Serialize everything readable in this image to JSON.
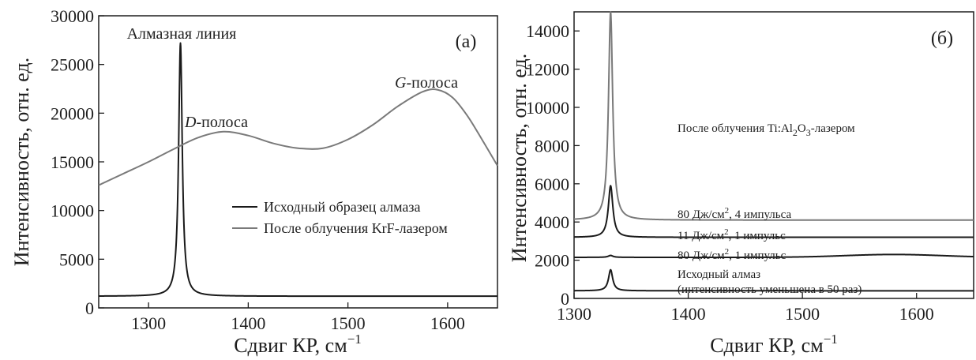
{
  "chart_data": [
    {
      "type": "line",
      "panel_label": "(а)",
      "xlabel": "Сдвиг КР, см",
      "xlabel_sup": "−1",
      "ylabel": "Интенсивность, отн. ед.",
      "xlim": [
        1250,
        1650
      ],
      "ylim": [
        0,
        30000
      ],
      "x_ticks": [
        1300,
        1400,
        1500,
        1600
      ],
      "y_ticks": [
        0,
        5000,
        10000,
        15000,
        20000,
        25000,
        30000
      ],
      "annotations": {
        "diamond_line": "Алмазная линия",
        "d_band_italic": "D",
        "d_band_rest": "-полоса",
        "g_band_italic": "G",
        "g_band_rest": "-полоса"
      },
      "series": [
        {
          "name": "Исходный образец алмаза",
          "color": "#1a1a1a",
          "shape": "lorentz_on_baseline",
          "baseline": 1200,
          "peak_x": 1332,
          "peak_y": 27200,
          "hwhm": 2.2
        },
        {
          "name": "После облучения KrF-лазером",
          "color": "#7a7a7a",
          "shape": "points",
          "x": [
            1250,
            1275,
            1300,
            1325,
            1350,
            1375,
            1400,
            1425,
            1450,
            1475,
            1500,
            1525,
            1550,
            1575,
            1590,
            1605,
            1620,
            1635,
            1650
          ],
          "y": [
            12600,
            13800,
            15000,
            16300,
            17500,
            18100,
            17700,
            16900,
            16400,
            16400,
            17300,
            18800,
            20700,
            22200,
            22400,
            21600,
            19700,
            17200,
            14600
          ]
        }
      ],
      "legend_position": "right-center"
    },
    {
      "type": "line",
      "panel_label": "(б)",
      "xlabel": "Сдвиг КР, см",
      "xlabel_sup": "−1",
      "ylabel": "Интенсивность, отн. ед.",
      "xlim": [
        1300,
        1650
      ],
      "ylim": [
        0,
        15000
      ],
      "x_ticks": [
        1300,
        1400,
        1500,
        1600
      ],
      "y_ticks": [
        0,
        2000,
        4000,
        6000,
        8000,
        10000,
        12000,
        14000
      ],
      "header": {
        "prefix": "После облучения Ti:Al",
        "sub1": "2",
        "mid": "O",
        "sub2": "3",
        "suffix": "-лазером"
      },
      "series": [
        {
          "name_parts": [
            "80 Дж/см",
            "2",
            ", 4 импульса"
          ],
          "color": "#7a7a7a",
          "baseline": 4100,
          "peak_x": 1332,
          "peak_y": 15000,
          "hwhm": 2.2,
          "broad": null
        },
        {
          "name_parts": [
            "11 Дж/см",
            "2",
            ", 1 импульс"
          ],
          "color": "#1a1a1a",
          "baseline": 3200,
          "peak_x": 1332,
          "peak_y": 5900,
          "hwhm": 2.4,
          "broad": null
        },
        {
          "name_parts": [
            "80 Дж/см",
            "2",
            ", 1 импульс"
          ],
          "color": "#1a1a1a",
          "baseline": 2150,
          "peak_x": 1332,
          "peak_y": 2250,
          "hwhm": 2.5,
          "broad": {
            "center": 1580,
            "amplitude": 150,
            "width": 60
          }
        },
        {
          "name_parts": [
            "Исходный алмаз",
            "",
            ""
          ],
          "name_line2": "(интенсивность уменьшена в 50 раз)",
          "color": "#1a1a1a",
          "baseline": 400,
          "peak_x": 1332,
          "peak_y": 1500,
          "hwhm": 2.2,
          "broad": null
        }
      ]
    }
  ]
}
